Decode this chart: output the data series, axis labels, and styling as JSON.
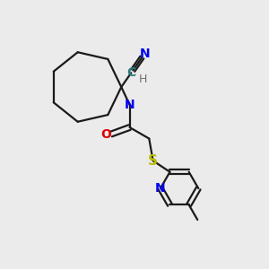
{
  "bg_color": "#ebebeb",
  "bond_color": "#1a1a1a",
  "N_color": "#0000ee",
  "O_color": "#dd0000",
  "S_color": "#bbbb00",
  "C_color": "#2a7a7a",
  "H_color": "#707070",
  "figsize": [
    3.0,
    3.0
  ],
  "dpi": 100,
  "lw": 1.6,
  "xlim": [
    0,
    10
  ],
  "ylim": [
    0,
    10
  ]
}
